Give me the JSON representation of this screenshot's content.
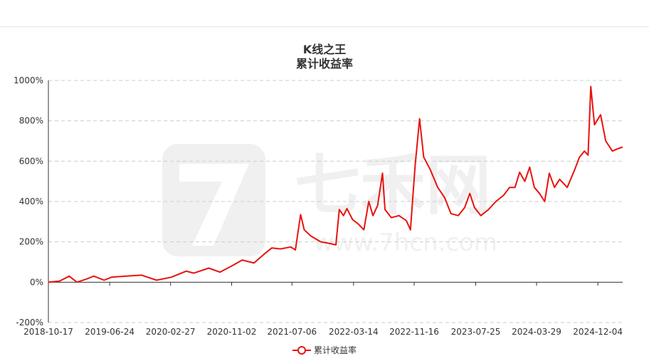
{
  "colors": {
    "line": "#e8130d",
    "grid": "#cccccc",
    "axis": "#333333",
    "watermark": "#f0f0f0"
  },
  "watermark": {
    "brand": "七禾网",
    "url": "www.7hcn.com"
  },
  "chart_data": {
    "type": "line",
    "title": "K线之王",
    "subtitle": "累计收益率",
    "ylim": [
      -200,
      1000
    ],
    "yticks": [
      -200,
      0,
      200,
      400,
      600,
      800,
      1000
    ],
    "ytick_labels": [
      "-200%",
      "0%",
      "200%",
      "400%",
      "600%",
      "800%",
      "1000%"
    ],
    "xticks": [
      "2018-10-17",
      "2019-06-24",
      "2020-02-27",
      "2020-11-02",
      "2021-07-06",
      "2022-03-14",
      "2022-11-16",
      "2023-07-25",
      "2024-03-29",
      "2024-12-04"
    ],
    "grid": true,
    "legend_position": "bottom",
    "series": [
      {
        "name": "累计收益率",
        "points": [
          [
            "2018-10-17",
            0
          ],
          [
            "2018-12-01",
            5
          ],
          [
            "2019-01-10",
            30
          ],
          [
            "2019-02-10",
            0
          ],
          [
            "2019-03-20",
            15
          ],
          [
            "2019-04-20",
            30
          ],
          [
            "2019-06-01",
            10
          ],
          [
            "2019-07-01",
            25
          ],
          [
            "2019-09-01",
            30
          ],
          [
            "2019-11-01",
            35
          ],
          [
            "2020-01-01",
            10
          ],
          [
            "2020-03-01",
            25
          ],
          [
            "2020-05-01",
            55
          ],
          [
            "2020-06-01",
            45
          ],
          [
            "2020-08-01",
            70
          ],
          [
            "2020-09-15",
            50
          ],
          [
            "2020-11-01",
            80
          ],
          [
            "2020-12-15",
            110
          ],
          [
            "2021-02-01",
            95
          ],
          [
            "2021-03-15",
            140
          ],
          [
            "2021-04-15",
            170
          ],
          [
            "2021-05-20",
            165
          ],
          [
            "2021-07-01",
            175
          ],
          [
            "2021-07-20",
            160
          ],
          [
            "2021-08-10",
            335
          ],
          [
            "2021-08-25",
            260
          ],
          [
            "2021-09-20",
            230
          ],
          [
            "2021-11-01",
            200
          ],
          [
            "2021-12-15",
            190
          ],
          [
            "2022-01-01",
            185
          ],
          [
            "2022-01-15",
            360
          ],
          [
            "2022-02-01",
            330
          ],
          [
            "2022-02-15",
            365
          ],
          [
            "2022-03-10",
            310
          ],
          [
            "2022-04-01",
            290
          ],
          [
            "2022-04-25",
            260
          ],
          [
            "2022-05-15",
            400
          ],
          [
            "2022-06-01",
            330
          ],
          [
            "2022-06-20",
            380
          ],
          [
            "2022-07-10",
            540
          ],
          [
            "2022-07-20",
            360
          ],
          [
            "2022-08-15",
            320
          ],
          [
            "2022-09-15",
            330
          ],
          [
            "2022-10-15",
            305
          ],
          [
            "2022-11-01",
            260
          ],
          [
            "2022-11-20",
            580
          ],
          [
            "2022-12-08",
            810
          ],
          [
            "2022-12-25",
            620
          ],
          [
            "2023-01-20",
            560
          ],
          [
            "2023-02-20",
            470
          ],
          [
            "2023-03-20",
            420
          ],
          [
            "2023-04-15",
            340
          ],
          [
            "2023-05-15",
            330
          ],
          [
            "2023-06-10",
            370
          ],
          [
            "2023-07-01",
            440
          ],
          [
            "2023-07-20",
            370
          ],
          [
            "2023-08-15",
            330
          ],
          [
            "2023-09-15",
            360
          ],
          [
            "2023-10-15",
            400
          ],
          [
            "2023-11-15",
            430
          ],
          [
            "2023-12-10",
            470
          ],
          [
            "2024-01-01",
            470
          ],
          [
            "2024-01-20",
            545
          ],
          [
            "2024-02-10",
            500
          ],
          [
            "2024-03-01",
            570
          ],
          [
            "2024-03-20",
            470
          ],
          [
            "2024-04-10",
            440
          ],
          [
            "2024-05-01",
            400
          ],
          [
            "2024-05-20",
            540
          ],
          [
            "2024-06-10",
            470
          ],
          [
            "2024-07-01",
            510
          ],
          [
            "2024-08-01",
            470
          ],
          [
            "2024-09-01",
            560
          ],
          [
            "2024-09-20",
            620
          ],
          [
            "2024-10-10",
            650
          ],
          [
            "2024-10-25",
            630
          ],
          [
            "2024-11-05",
            970
          ],
          [
            "2024-11-20",
            780
          ],
          [
            "2024-12-15",
            830
          ],
          [
            "2025-01-05",
            700
          ],
          [
            "2025-02-01",
            650
          ],
          [
            "2025-02-20",
            660
          ],
          [
            "2025-03-15",
            670
          ]
        ]
      }
    ]
  }
}
